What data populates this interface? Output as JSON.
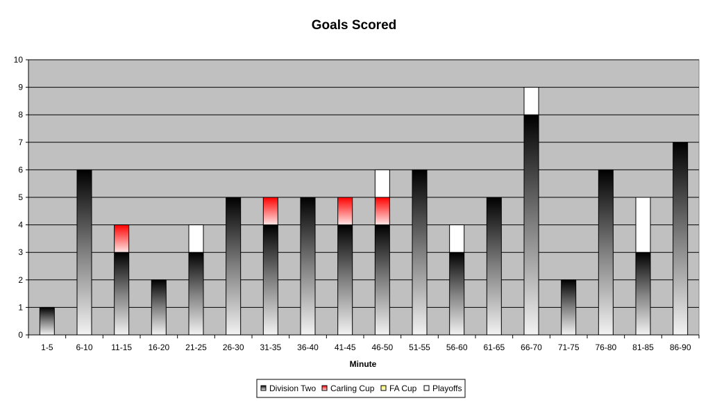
{
  "chart_data": {
    "type": "bar",
    "stacked": true,
    "title": "Goals Scored",
    "xlabel": "Minute",
    "ylabel": "",
    "ylim": [
      0,
      10
    ],
    "yticks": [
      0,
      1,
      2,
      3,
      4,
      5,
      6,
      7,
      8,
      9,
      10
    ],
    "grid": true,
    "legend_position": "bottom",
    "categories": [
      "1-5",
      "6-10",
      "11-15",
      "16-20",
      "21-25",
      "26-30",
      "31-35",
      "36-40",
      "41-45",
      "46-50",
      "51-55",
      "56-60",
      "61-65",
      "66-70",
      "71-75",
      "76-80",
      "81-85",
      "86-90"
    ],
    "series": [
      {
        "name": "Division Two",
        "color": "#000000",
        "values": [
          1,
          6,
          3,
          2,
          3,
          5,
          4,
          5,
          4,
          4,
          6,
          3,
          5,
          8,
          2,
          6,
          3,
          7
        ]
      },
      {
        "name": "Carling Cup",
        "color": "#ff0000",
        "values": [
          0,
          0,
          1,
          0,
          0,
          0,
          1,
          0,
          1,
          1,
          0,
          0,
          0,
          0,
          0,
          0,
          0,
          0
        ]
      },
      {
        "name": "FA Cup",
        "color": "#ffff99",
        "values": [
          0,
          0,
          0,
          0,
          0,
          0,
          0,
          0,
          0,
          0,
          0,
          0,
          0,
          0,
          0,
          0,
          0,
          0
        ]
      },
      {
        "name": "Playoffs",
        "color": "#ffffff",
        "values": [
          0,
          0,
          0,
          0,
          1,
          0,
          0,
          0,
          0,
          1,
          0,
          1,
          0,
          1,
          0,
          0,
          2,
          0
        ]
      }
    ],
    "plot_background": "#c0c0c0"
  }
}
